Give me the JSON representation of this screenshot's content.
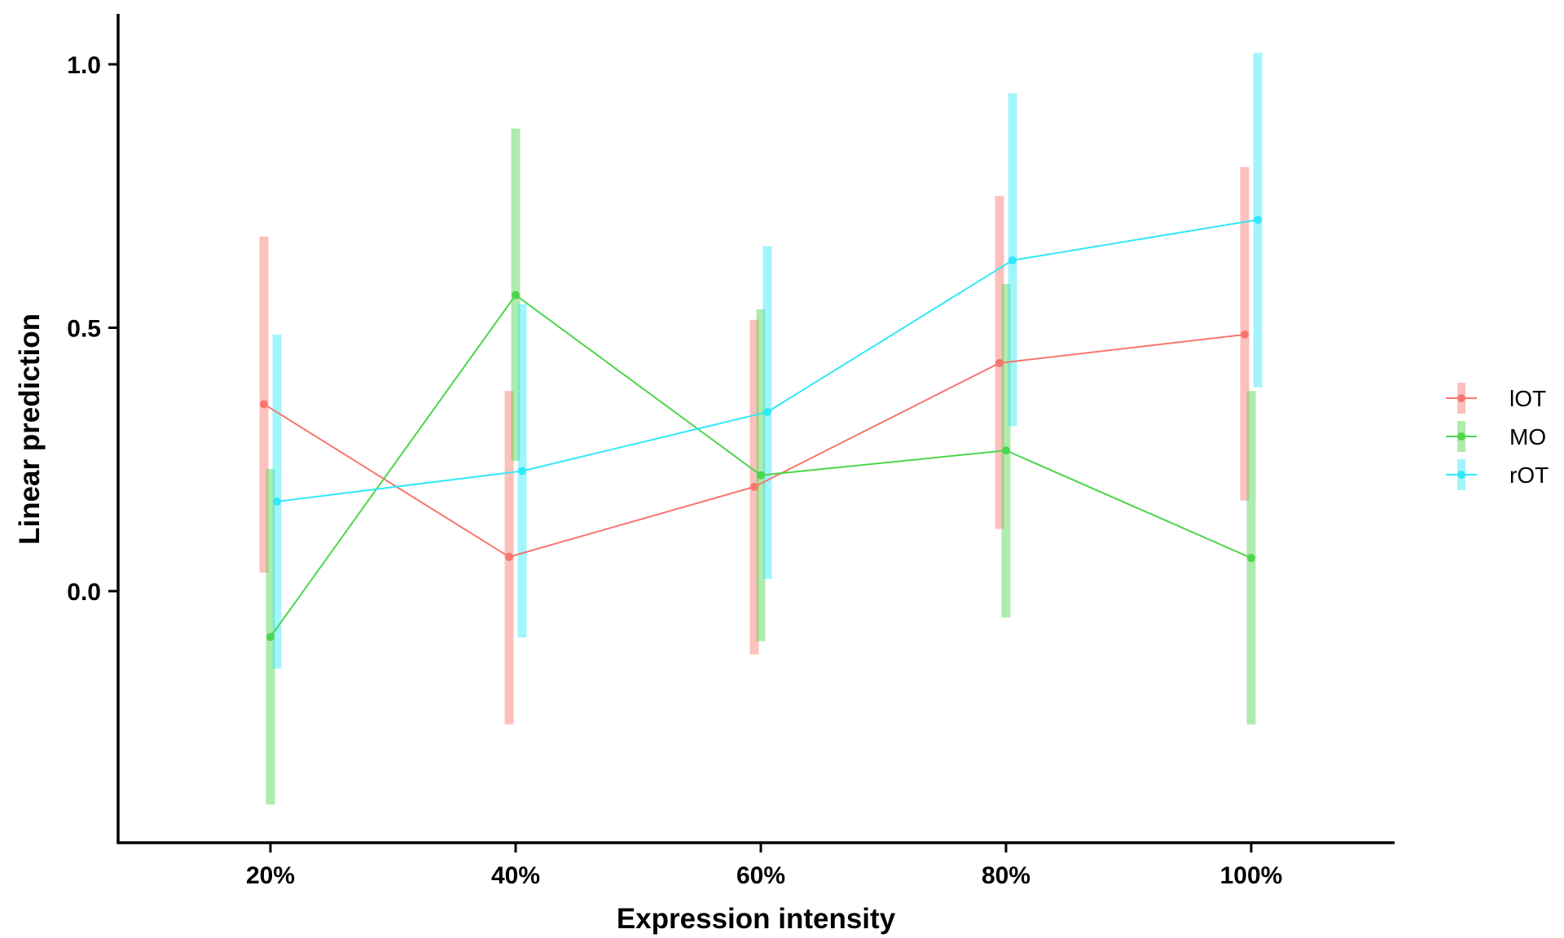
{
  "chart_data": {
    "type": "line",
    "title": "",
    "xlabel": "Expression intensity",
    "ylabel": "Linear prediction",
    "categories": [
      "20%",
      "40%",
      "60%",
      "80%",
      "100%"
    ],
    "yticks": [
      "0.0",
      "0.5",
      "1.0"
    ],
    "ytick_values": [
      0.0,
      0.5,
      1.0
    ],
    "ylim": [
      -0.47,
      1.1
    ],
    "grid": false,
    "legend_position": "right",
    "series": [
      {
        "name": "lOT",
        "color": "#F8766D",
        "values": [
          0.355,
          0.065,
          0.198,
          0.433,
          0.487
        ],
        "lower": [
          0.035,
          -0.253,
          -0.12,
          0.118,
          0.172
        ],
        "upper": [
          0.673,
          0.38,
          0.515,
          0.75,
          0.805
        ]
      },
      {
        "name": "MO",
        "color": "#4CD54C",
        "values": [
          -0.087,
          0.562,
          0.22,
          0.267,
          0.063
        ],
        "lower": [
          -0.405,
          0.247,
          -0.095,
          -0.05,
          -0.253
        ],
        "upper": [
          0.232,
          0.878,
          0.535,
          0.583,
          0.38
        ]
      },
      {
        "name": "rOT",
        "color": "#33E8F8",
        "values": [
          0.17,
          0.228,
          0.34,
          0.628,
          0.705
        ],
        "lower": [
          -0.147,
          -0.088,
          0.023,
          0.313,
          0.387
        ],
        "upper": [
          0.487,
          0.545,
          0.655,
          0.945,
          1.022
        ]
      }
    ]
  }
}
